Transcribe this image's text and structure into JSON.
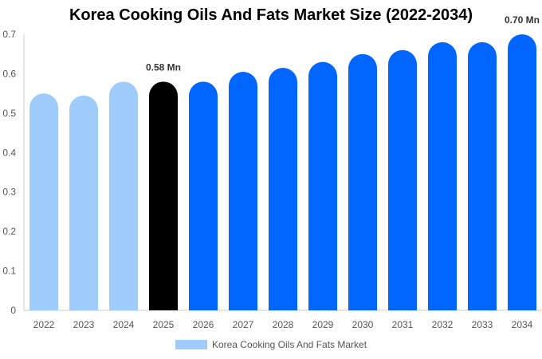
{
  "chart_data": {
    "type": "bar",
    "title": "Korea Cooking Oils And Fats Market Size (2022-2034)",
    "categories": [
      "2022",
      "2023",
      "2024",
      "2025",
      "2026",
      "2027",
      "2028",
      "2029",
      "2030",
      "2031",
      "2032",
      "2033",
      "2034"
    ],
    "series": [
      {
        "name": "Korea Cooking Oils And Fats Market",
        "values": [
          0.55,
          0.545,
          0.58,
          0.58,
          0.58,
          0.605,
          0.615,
          0.63,
          0.65,
          0.66,
          0.68,
          0.68,
          0.7
        ]
      }
    ],
    "ylim": [
      0,
      0.7
    ],
    "yticks": [
      "0",
      "0.1",
      "0.2",
      "0.3",
      "0.4",
      "0.5",
      "0.6",
      "0.7"
    ],
    "data_labels": [
      {
        "category": "2025",
        "text": "0.58 Mn"
      },
      {
        "category": "2034",
        "text": "0.70 Mn"
      }
    ],
    "grid": false,
    "legend_position": "bottom",
    "colors": {
      "historical": "#9fccfa",
      "current": "#000000",
      "forecast": "#0066ff",
      "axis": "#cccccc",
      "tick_text": "#555555"
    },
    "bar_color_groups": [
      "historical",
      "historical",
      "historical",
      "current",
      "forecast",
      "forecast",
      "forecast",
      "forecast",
      "forecast",
      "forecast",
      "forecast",
      "forecast",
      "forecast"
    ]
  }
}
